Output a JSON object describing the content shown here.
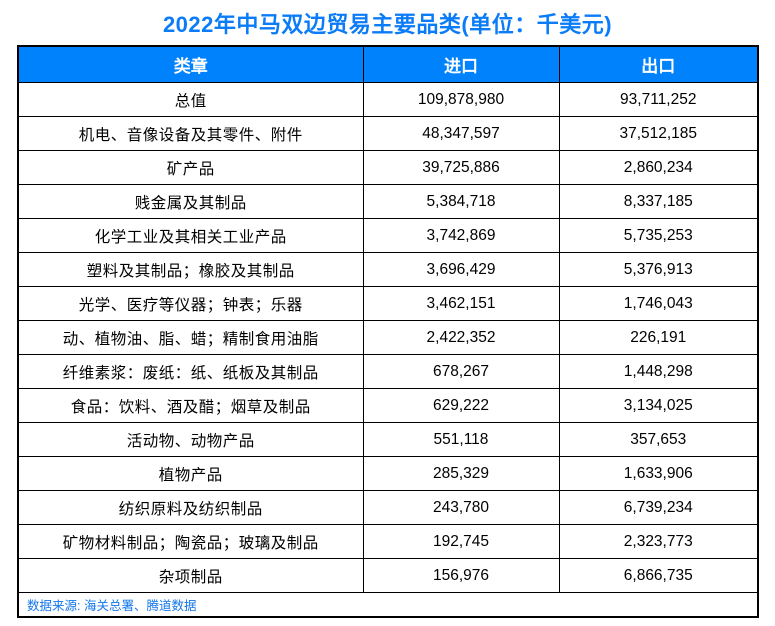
{
  "title": "2022年中马双边贸易主要品类(单位：千美元)",
  "colors": {
    "header_bg": "#0082fc",
    "title_text": "#0a7cf8",
    "source_text": "#1276ec",
    "border": "#000000"
  },
  "table": {
    "headers": [
      "类章",
      "进口",
      "出口"
    ],
    "rows": [
      {
        "category": "总值",
        "import": "109,878,980",
        "export": "93,711,252"
      },
      {
        "category": "机电、音像设备及其零件、附件",
        "import": "48,347,597",
        "export": "37,512,185"
      },
      {
        "category": "矿产品",
        "import": "39,725,886",
        "export": "2,860,234"
      },
      {
        "category": "贱金属及其制品",
        "import": "5,384,718",
        "export": "8,337,185"
      },
      {
        "category": "化学工业及其相关工业产品",
        "import": "3,742,869",
        "export": "5,735,253"
      },
      {
        "category": "塑料及其制品；橡胶及其制品",
        "import": "3,696,429",
        "export": "5,376,913"
      },
      {
        "category": "光学、医疗等仪器；钟表；乐器",
        "import": "3,462,151",
        "export": "1,746,043"
      },
      {
        "category": "动、植物油、脂、蜡；精制食用油脂",
        "import": "2,422,352",
        "export": "226,191"
      },
      {
        "category": "纤维素浆：废纸：纸、纸板及其制品",
        "import": "678,267",
        "export": "1,448,298"
      },
      {
        "category": "食品：饮料、酒及醋；烟草及制品",
        "import": "629,222",
        "export": "3,134,025"
      },
      {
        "category": "活动物、动物产品",
        "import": "551,118",
        "export": "357,653"
      },
      {
        "category": "植物产品",
        "import": "285,329",
        "export": "1,633,906"
      },
      {
        "category": "纺织原料及纺织制品",
        "import": "243,780",
        "export": "6,739,234"
      },
      {
        "category": "矿物材料制品；陶瓷品；玻璃及制品",
        "import": "192,745",
        "export": "2,323,773"
      },
      {
        "category": "杂项制品",
        "import": "156,976",
        "export": "6,866,735"
      }
    ],
    "source": "数据来源: 海关总署、腾道数据"
  },
  "chart_data": {
    "type": "table",
    "title": "2022年中马双边贸易主要品类(单位：千美元)",
    "unit": "千美元",
    "columns": [
      "类章",
      "进口",
      "出口"
    ],
    "rows": [
      [
        "总值",
        109878980,
        93711252
      ],
      [
        "机电、音像设备及其零件、附件",
        48347597,
        37512185
      ],
      [
        "矿产品",
        39725886,
        2860234
      ],
      [
        "贱金属及其制品",
        5384718,
        8337185
      ],
      [
        "化学工业及其相关工业产品",
        3742869,
        5735253
      ],
      [
        "塑料及其制品；橡胶及其制品",
        3696429,
        5376913
      ],
      [
        "光学、医疗等仪器；钟表；乐器",
        3462151,
        1746043
      ],
      [
        "动、植物油、脂、蜡；精制食用油脂",
        2422352,
        226191
      ],
      [
        "纤维素浆：废纸：纸、纸板及其制品",
        678267,
        1448298
      ],
      [
        "食品：饮料、酒及醋；烟草及制品",
        629222,
        3134025
      ],
      [
        "活动物、动物产品",
        551118,
        357653
      ],
      [
        "植物产品",
        285329,
        1633906
      ],
      [
        "纺织原料及纺织制品",
        243780,
        6739234
      ],
      [
        "矿物材料制品；陶瓷品；玻璃及制品",
        192745,
        2323773
      ],
      [
        "杂项制品",
        156976,
        6866735
      ]
    ],
    "source_note": "数据来源: 海关总署、腾道数据"
  }
}
